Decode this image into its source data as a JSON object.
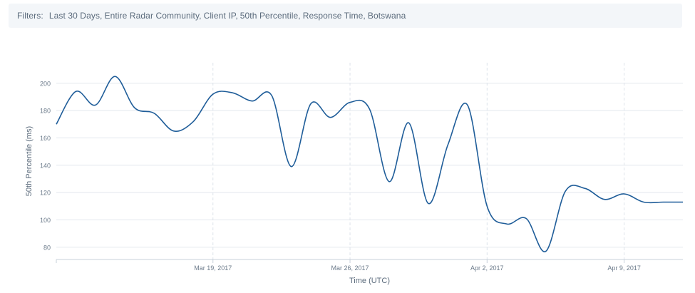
{
  "filters": {
    "label": "Filters:",
    "items": [
      "Last 30 Days,",
      "Entire Radar Community,",
      "Client IP,",
      "50th Percentile,",
      "Response Time,",
      "Botswana"
    ]
  },
  "chart_data": {
    "type": "line",
    "xlabel": "Time (UTC)",
    "ylabel": "50th Percentile (ms)",
    "ylim": [
      71,
      215
    ],
    "yticks": [
      80,
      100,
      120,
      140,
      160,
      180,
      200
    ],
    "xlim": [
      "2017-03-11",
      "2017-04-12"
    ],
    "xticks": [
      {
        "date": "2017-03-19",
        "label": "Mar 19, 2017"
      },
      {
        "date": "2017-03-26",
        "label": "Mar 26, 2017"
      },
      {
        "date": "2017-04-02",
        "label": "Apr 2, 2017"
      },
      {
        "date": "2017-04-09",
        "label": "Apr 9, 2017"
      }
    ],
    "grid": true,
    "series": [
      {
        "color": "#1f5d99",
        "x": [
          "2017-03-11",
          "2017-03-12",
          "2017-03-13",
          "2017-03-14",
          "2017-03-15",
          "2017-03-16",
          "2017-03-17",
          "2017-03-18",
          "2017-03-19",
          "2017-03-20",
          "2017-03-21",
          "2017-03-22",
          "2017-03-23",
          "2017-03-24",
          "2017-03-25",
          "2017-03-26",
          "2017-03-27",
          "2017-03-28",
          "2017-03-29",
          "2017-03-30",
          "2017-03-31",
          "2017-04-01",
          "2017-04-02",
          "2017-04-03",
          "2017-04-04",
          "2017-04-05",
          "2017-04-06",
          "2017-04-07",
          "2017-04-08",
          "2017-04-09",
          "2017-04-10",
          "2017-04-11",
          "2017-04-12"
        ],
        "values": [
          170,
          194,
          184,
          205,
          182,
          178,
          165,
          172,
          192,
          193,
          187,
          191,
          139,
          185,
          175,
          186,
          181,
          128,
          171,
          112,
          155,
          184,
          110,
          97,
          101,
          77,
          121,
          123,
          115,
          119,
          113,
          113,
          113
        ]
      }
    ]
  }
}
